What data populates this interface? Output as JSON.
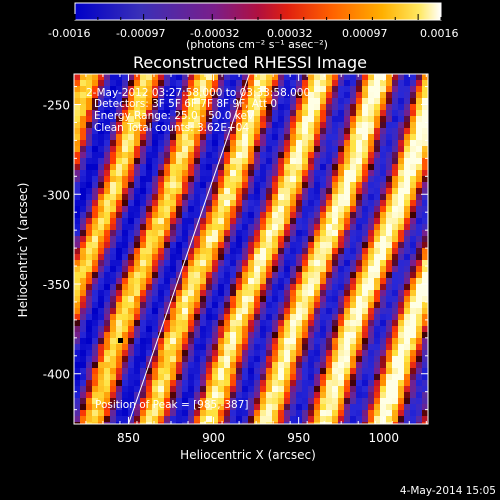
{
  "colorbar": {
    "ticks": [
      "-0.0016",
      "-0.00097",
      "-0.00032",
      "0.00032",
      "0.00097",
      "0.0016"
    ],
    "unit_label": "(photons cm⁻² s⁻¹ asec⁻²)",
    "colors": [
      "#0000c8",
      "#2020e0",
      "#5a2aa0",
      "#7a1e8a",
      "#a01858",
      "#d8202c",
      "#ff2a00",
      "#ff6a00",
      "#ffa000",
      "#ffd83a",
      "#ffffff"
    ]
  },
  "header": {
    "title": "Reconstructed RHESSI Image",
    "time_range": "2-May-2012 03:27:58.000 to 03:33:58.000",
    "detectors": "Detectors: 3F 5F 6F 7F 8F 9F, Att 0",
    "energy": "Energy Range: 25.0 - 50.0 keV",
    "clean": "Clean    Total counts: 3.62E+04"
  },
  "annotation": {
    "peak": "Position of Peak = [985,-387]"
  },
  "footer": {
    "date": "4-May-2014 15:05"
  },
  "chart_data": {
    "type": "heatmap",
    "title": "Reconstructed RHESSI Image",
    "xlabel": "Heliocentric X (arcsec)",
    "ylabel": "Heliocentric Y (arcsec)",
    "xlim": [
      818,
      1026
    ],
    "ylim": [
      -428,
      -233
    ],
    "xticks": [
      850,
      900,
      950,
      1000
    ],
    "yticks": [
      -250,
      -300,
      -350,
      -400
    ],
    "colorbar_range": [
      -0.0016,
      0.0016
    ],
    "description_of_pattern": "diagonal stripes of alternating positive (yellow/red) and negative (blue/purple) flux",
    "limb_line": [
      {
        "x": 850,
        "y": -428
      },
      {
        "x": 921,
        "y": -233
      }
    ],
    "peak_position": [
      985,
      -387
    ]
  }
}
